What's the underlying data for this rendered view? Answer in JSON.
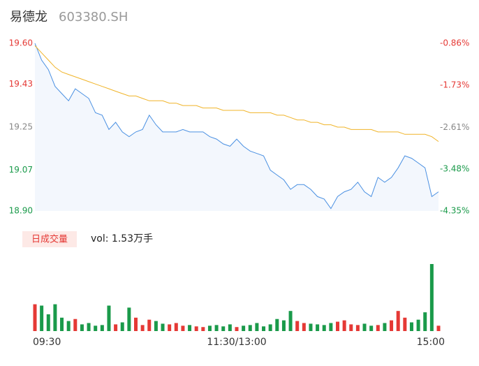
{
  "chart_data": [
    {
      "type": "line",
      "title": "易德龙",
      "subtitle": "603380.SH",
      "x": [
        0,
        4,
        8,
        12,
        16,
        20,
        24,
        28,
        32,
        36,
        40,
        44,
        48,
        52,
        56,
        60,
        64,
        68,
        72,
        76,
        80,
        84,
        88,
        92,
        96,
        100,
        104,
        108,
        112,
        116,
        120,
        124,
        128,
        132,
        136,
        140,
        144,
        148,
        152,
        156,
        160,
        164,
        168,
        172,
        176,
        180,
        184,
        188,
        192,
        196,
        200,
        204,
        208,
        212,
        216,
        220,
        224,
        228,
        232,
        236,
        240
      ],
      "xlim": [
        0,
        240
      ],
      "xticks": [
        {
          "value": 0,
          "label": "09:30"
        },
        {
          "value": 120,
          "label": "11:30/13:00"
        },
        {
          "value": 240,
          "label": "15:00"
        }
      ],
      "ylim": [
        18.9,
        19.6
      ],
      "yticks": [
        {
          "value": 18.9,
          "label": "18.90"
        },
        {
          "value": 19.07,
          "label": "19.07"
        },
        19.25,
        19.43,
        {
          "value": 19.6,
          "label": "19.60"
        }
      ],
      "y2lim": [
        -4.35,
        -0.86
      ],
      "y2ticks": [
        {
          "value": -4.35,
          "label": "-4.35%"
        },
        {
          "value": -3.48,
          "label": "-3.48%"
        },
        {
          "value": -2.61,
          "label": "-2.61%"
        },
        {
          "value": -1.73,
          "label": "-1.73%"
        },
        {
          "value": -0.86,
          "label": "-0.86%"
        }
      ],
      "tick_colors": [
        "#1a9a4a",
        "#1a9a4a",
        "#888888",
        "#e53935",
        "#e53935"
      ],
      "grid": false,
      "series": [
        {
          "color": "#4a90e2",
          "values": [
            19.6,
            19.53,
            19.49,
            19.42,
            19.39,
            19.36,
            19.41,
            19.39,
            19.37,
            19.31,
            19.3,
            19.24,
            19.27,
            19.23,
            19.21,
            19.23,
            19.24,
            19.3,
            19.26,
            19.23,
            19.23,
            19.23,
            19.24,
            19.23,
            19.23,
            19.23,
            19.21,
            19.2,
            19.18,
            19.17,
            19.2,
            19.17,
            19.15,
            19.14,
            19.13,
            19.07,
            19.05,
            19.03,
            18.99,
            19.01,
            19.01,
            18.99,
            18.96,
            18.95,
            18.91,
            18.96,
            18.98,
            18.99,
            19.02,
            18.98,
            18.96,
            19.04,
            19.02,
            19.04,
            19.08,
            19.13,
            19.12,
            19.1,
            19.08,
            18.96,
            18.98
          ]
        },
        {
          "color": "#f0b429",
          "values": [
            19.59,
            19.56,
            19.53,
            19.5,
            19.48,
            19.47,
            19.46,
            19.45,
            19.44,
            19.43,
            19.42,
            19.41,
            19.4,
            19.39,
            19.38,
            19.38,
            19.37,
            19.36,
            19.36,
            19.36,
            19.35,
            19.35,
            19.34,
            19.34,
            19.34,
            19.33,
            19.33,
            19.33,
            19.32,
            19.32,
            19.32,
            19.32,
            19.31,
            19.31,
            19.31,
            19.31,
            19.3,
            19.3,
            19.29,
            19.28,
            19.28,
            19.27,
            19.27,
            19.26,
            19.26,
            19.25,
            19.25,
            19.24,
            19.24,
            19.24,
            19.24,
            19.23,
            19.23,
            19.23,
            19.23,
            19.22,
            19.22,
            19.22,
            19.22,
            19.21,
            19.19
          ]
        }
      ]
    },
    {
      "type": "volume",
      "legend": "日成交量",
      "volume_label": "vol: 1.53万手",
      "ylim": [
        0,
        1000
      ],
      "up_color": "#e53935",
      "down_color": "#1a9a4a",
      "values": [
        400,
        380,
        250,
        400,
        200,
        150,
        180,
        100,
        120,
        80,
        90,
        380,
        100,
        130,
        350,
        200,
        90,
        170,
        150,
        110,
        100,
        120,
        80,
        90,
        70,
        60,
        80,
        90,
        70,
        100,
        60,
        80,
        90,
        120,
        70,
        100,
        180,
        160,
        300,
        150,
        120,
        110,
        100,
        90,
        120,
        140,
        160,
        100,
        90,
        110,
        80,
        90,
        120,
        160,
        300,
        200,
        130,
        170,
        280,
        1000,
        80
      ]
    }
  ]
}
